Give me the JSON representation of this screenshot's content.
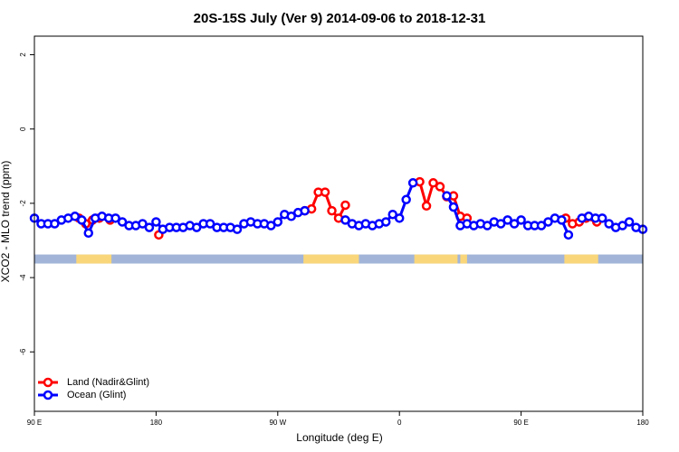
{
  "chart_data": {
    "type": "line",
    "title": "20S-15S July (Ver 9)   2014-09-06 to 2018-12-31",
    "x_label": "Longitude (deg E)",
    "y_label": "XCO2 - MLO trend (ppm)",
    "xlim": [
      90,
      540
    ],
    "ylim": [
      -7.6,
      2.5
    ],
    "xticks": [
      {
        "value": 90,
        "label": "90 E"
      },
      {
        "value": 180,
        "label": "180"
      },
      {
        "value": 270,
        "label": "90 W"
      },
      {
        "value": 360,
        "label": "0"
      },
      {
        "value": 450,
        "label": "90 E"
      },
      {
        "value": 540,
        "label": "180"
      }
    ],
    "yticks": [
      2,
      0,
      -2,
      -4,
      -6
    ],
    "legend": "bottom-left",
    "land_spans": {
      "value": -3.5,
      "ocean_color": "#a2b5d8",
      "land_color": "#f9d67a",
      "spans": [
        [
          121,
          147
        ],
        [
          289,
          330
        ],
        [
          371,
          403
        ],
        [
          405,
          410
        ],
        [
          482,
          507
        ]
      ]
    },
    "series": [
      {
        "name": "Land (Nadir&Glint)",
        "color": "#ff0000",
        "x": [
          123,
          128,
          133,
          138,
          146,
          160,
          182,
          200,
          290,
          295,
          300,
          305,
          310,
          315,
          320,
          350,
          375,
          380,
          385,
          390,
          395,
          400,
          405,
          410,
          440,
          483,
          488,
          493,
          498,
          506
        ],
        "values": [
          -2.4,
          -2.55,
          -2.45,
          -2.4,
          -2.45,
          null,
          -2.85,
          null,
          -2.2,
          -2.15,
          -1.7,
          -1.7,
          -2.2,
          -2.4,
          -2.05,
          null,
          -1.42,
          -2.07,
          -1.45,
          -1.55,
          -1.82,
          -1.8,
          -2.35,
          -2.4,
          null,
          -2.4,
          -2.55,
          -2.5,
          -2.4,
          -2.5
        ]
      },
      {
        "name": "Ocean (Glint)",
        "color": "#0000ff",
        "x": [
          90,
          95,
          100,
          105,
          110,
          115,
          120,
          125,
          130,
          135,
          140,
          145,
          150,
          155,
          160,
          165,
          170,
          175,
          180,
          185,
          190,
          195,
          200,
          205,
          210,
          215,
          220,
          225,
          230,
          235,
          240,
          245,
          250,
          255,
          260,
          265,
          270,
          275,
          280,
          285,
          290,
          295,
          300,
          305,
          310,
          315,
          320,
          325,
          330,
          335,
          340,
          345,
          350,
          355,
          360,
          365,
          370,
          375,
          380,
          385,
          390,
          395,
          400,
          405,
          410,
          415,
          420,
          425,
          430,
          435,
          440,
          445,
          450,
          455,
          460,
          465,
          470,
          475,
          480,
          485,
          490,
          495,
          500,
          505,
          510,
          515,
          520,
          525,
          530,
          535,
          540
        ],
        "values": [
          -2.4,
          -2.55,
          -2.55,
          -2.55,
          -2.45,
          -2.4,
          -2.35,
          -2.45,
          -2.8,
          -2.4,
          -2.35,
          -2.4,
          -2.4,
          -2.5,
          -2.6,
          -2.6,
          -2.55,
          -2.65,
          -2.5,
          -2.7,
          -2.65,
          -2.65,
          -2.65,
          -2.6,
          -2.65,
          -2.55,
          -2.55,
          -2.65,
          -2.65,
          -2.65,
          -2.7,
          -2.55,
          -2.5,
          -2.55,
          -2.55,
          -2.6,
          -2.5,
          -2.3,
          -2.35,
          -2.25,
          -2.2,
          null,
          null,
          null,
          null,
          null,
          -2.45,
          -2.55,
          -2.6,
          -2.55,
          -2.6,
          -2.55,
          -2.5,
          -2.3,
          -2.4,
          -1.9,
          -1.45,
          null,
          null,
          null,
          null,
          -1.8,
          -2.1,
          -2.6,
          -2.55,
          -2.6,
          -2.55,
          -2.6,
          -2.5,
          -2.55,
          -2.45,
          -2.55,
          -2.45,
          -2.6,
          -2.6,
          -2.6,
          -2.5,
          -2.4,
          -2.45,
          -2.85,
          null,
          -2.4,
          -2.35,
          -2.4,
          -2.4,
          -2.55,
          -2.65,
          -2.6,
          -2.5,
          -2.65,
          -2.7
        ]
      }
    ]
  }
}
